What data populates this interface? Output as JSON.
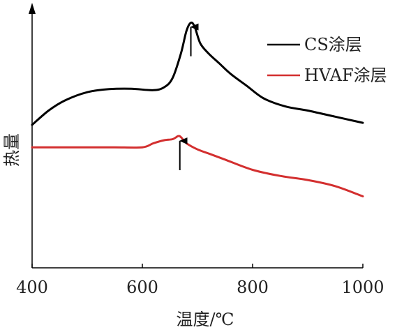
{
  "chart_data": {
    "type": "line",
    "xlabel": "温度/℃",
    "ylabel": "热量",
    "xlim": [
      400,
      1000
    ],
    "x_ticks": [
      "400",
      "600",
      "800",
      "1000"
    ],
    "y_ticks_shown": false,
    "grid": false,
    "legend_position": "top-right",
    "series": [
      {
        "name": "CS涂层",
        "color": "#000000",
        "x": [
          400,
          430,
          460,
          500,
          540,
          580,
          620,
          640,
          655,
          670,
          680,
          688,
          695,
          705,
          720,
          740,
          760,
          790,
          820,
          860,
          900,
          950,
          1000
        ],
        "y": [
          0.7,
          0.77,
          0.82,
          0.86,
          0.875,
          0.877,
          0.87,
          0.885,
          0.93,
          1.05,
          1.16,
          1.2,
          1.18,
          1.1,
          1.05,
          1.0,
          0.95,
          0.89,
          0.83,
          0.79,
          0.77,
          0.74,
          0.71
        ]
      },
      {
        "name": "HVAF涂层",
        "color": "#d32f2f",
        "x": [
          400,
          450,
          500,
          550,
          600,
          620,
          640,
          655,
          665,
          670,
          680,
          700,
          720,
          750,
          800,
          850,
          900,
          950,
          1000
        ],
        "y": [
          0.59,
          0.59,
          0.59,
          0.59,
          0.59,
          0.61,
          0.625,
          0.63,
          0.645,
          0.64,
          0.61,
          0.58,
          0.56,
          0.53,
          0.48,
          0.45,
          0.43,
          0.4,
          0.35
        ]
      }
    ],
    "annotations": [
      {
        "type": "arrow",
        "series": "CS涂层",
        "x": 688
      },
      {
        "type": "arrow",
        "series": "HVAF涂层",
        "x": 668
      }
    ]
  }
}
